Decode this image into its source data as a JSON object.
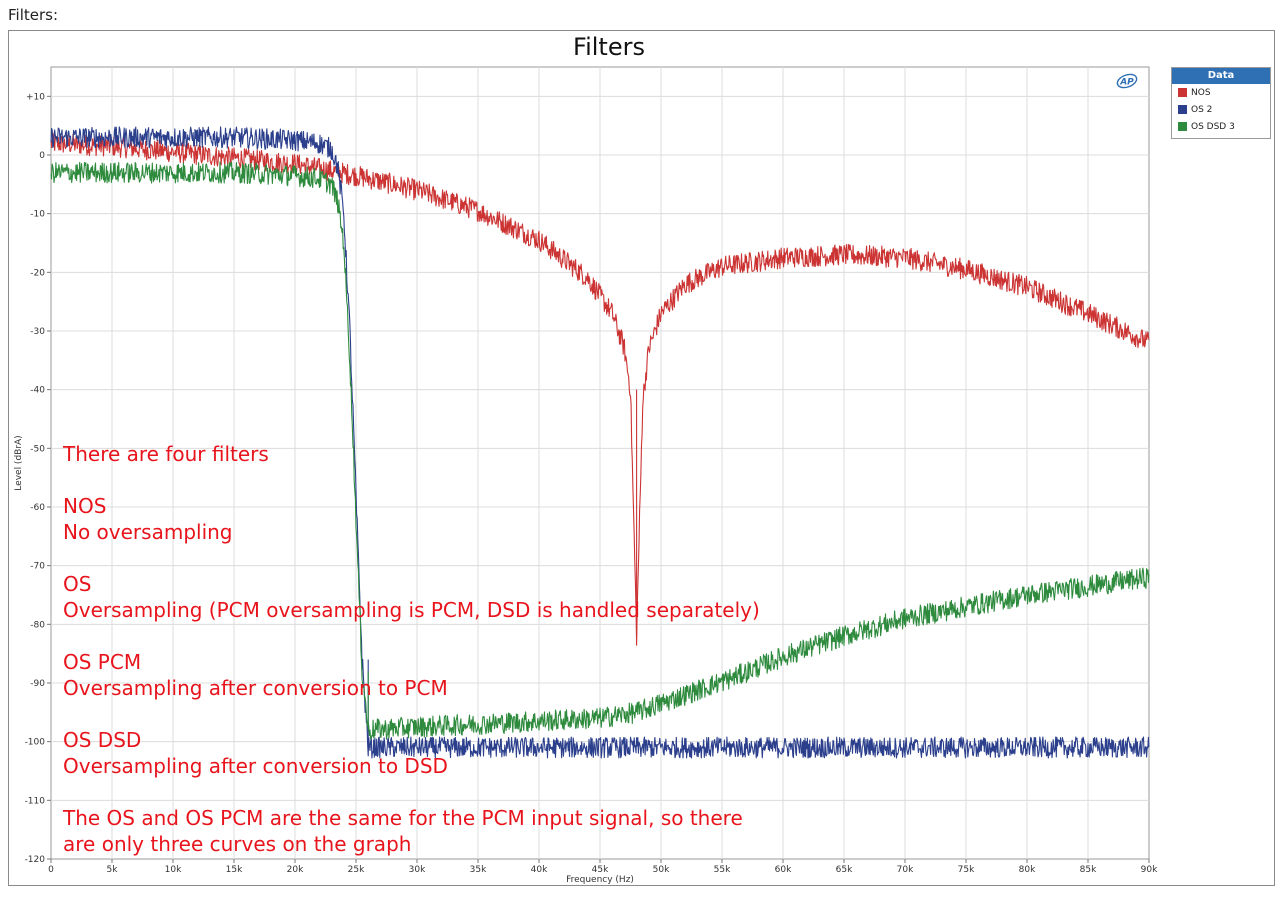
{
  "page": {
    "label": "Filters:"
  },
  "chart_data": {
    "type": "line",
    "title": "Filters",
    "xlabel": "Frequency (Hz)",
    "ylabel": "Level (dBrA)",
    "xlim": [
      0,
      90000
    ],
    "ylim": [
      -120,
      15
    ],
    "x_ticks": [
      0,
      5000,
      10000,
      15000,
      20000,
      25000,
      30000,
      35000,
      40000,
      45000,
      50000,
      55000,
      60000,
      65000,
      70000,
      75000,
      80000,
      85000,
      90000
    ],
    "x_tick_labels": [
      "0",
      "5k",
      "10k",
      "15k",
      "20k",
      "25k",
      "30k",
      "35k",
      "40k",
      "45k",
      "50k",
      "55k",
      "60k",
      "65k",
      "70k",
      "75k",
      "80k",
      "85k",
      "90k"
    ],
    "y_ticks": [
      10,
      0,
      -10,
      -20,
      -30,
      -40,
      -50,
      -60,
      -70,
      -80,
      -90,
      -100,
      -110,
      -120
    ],
    "y_tick_labels": [
      "+10",
      "0",
      "-10",
      "-20",
      "-30",
      "-40",
      "-50",
      "-60",
      "-70",
      "-80",
      "-90",
      "-100",
      "-110",
      "-120"
    ],
    "grid": true,
    "legend_placement": "right",
    "legend_title": "Data",
    "series": [
      {
        "name": "NOS",
        "legend_label": "NOS",
        "color": "#cc3333",
        "x": [
          0,
          5000,
          10000,
          15000,
          20000,
          25000,
          30000,
          35000,
          40000,
          44000,
          46000,
          47000,
          47500,
          48000,
          48500,
          49000,
          50000,
          52000,
          55000,
          60000,
          65000,
          70000,
          75000,
          80000,
          85000,
          90000
        ],
        "y": [
          2,
          1.5,
          0.5,
          -0.5,
          -1.5,
          -3.5,
          -6,
          -9.5,
          -14.5,
          -21,
          -27,
          -33,
          -40,
          -82,
          -42,
          -33,
          -27,
          -22,
          -19,
          -17.5,
          -17,
          -17.5,
          -19.5,
          -22.5,
          -27,
          -32
        ]
      },
      {
        "name": "OS",
        "legend_label": "OS 2",
        "color": "#2b3f8c",
        "x": [
          0,
          5000,
          10000,
          15000,
          20000,
          22000,
          23000,
          23500,
          24000,
          24500,
          25000,
          25500,
          26000,
          30000,
          40000,
          50000,
          60000,
          70000,
          80000,
          90000
        ],
        "y": [
          3,
          3,
          3,
          3,
          2.5,
          2,
          1,
          -2,
          -10,
          -30,
          -58,
          -86,
          -101,
          -101,
          -101,
          -101,
          -101,
          -101,
          -101,
          -101
        ]
      },
      {
        "name": "OS DSD",
        "legend_label": "OS DSD 3",
        "color": "#2e8b3e",
        "x": [
          0,
          5000,
          10000,
          15000,
          20000,
          22000,
          23000,
          23500,
          24000,
          24500,
          25000,
          25500,
          26000,
          30000,
          40000,
          45000,
          48000,
          52000,
          56000,
          60000,
          65000,
          70000,
          75000,
          80000,
          85000,
          90000
        ],
        "y": [
          -3,
          -3,
          -3,
          -3,
          -3.5,
          -4,
          -5,
          -8,
          -15,
          -35,
          -62,
          -88,
          -98,
          -97.5,
          -96.5,
          -96,
          -95,
          -92,
          -89,
          -85.5,
          -82,
          -79,
          -77,
          -75,
          -73.5,
          -72
        ]
      }
    ],
    "annotations": [
      "There are four filters",
      "",
      "NOS",
      "No oversampling",
      "",
      "OS",
      "Oversampling (PCM oversampling is PCM, DSD is handled separately)",
      "",
      "OS PCM",
      "Oversampling after conversion to PCM",
      "",
      "OS DSD",
      "Oversampling after conversion to DSD",
      "",
      "The OS and OS PCM are the same for the PCM input signal, so there",
      "are only three curves on the graph"
    ],
    "logo_text": "AP"
  }
}
